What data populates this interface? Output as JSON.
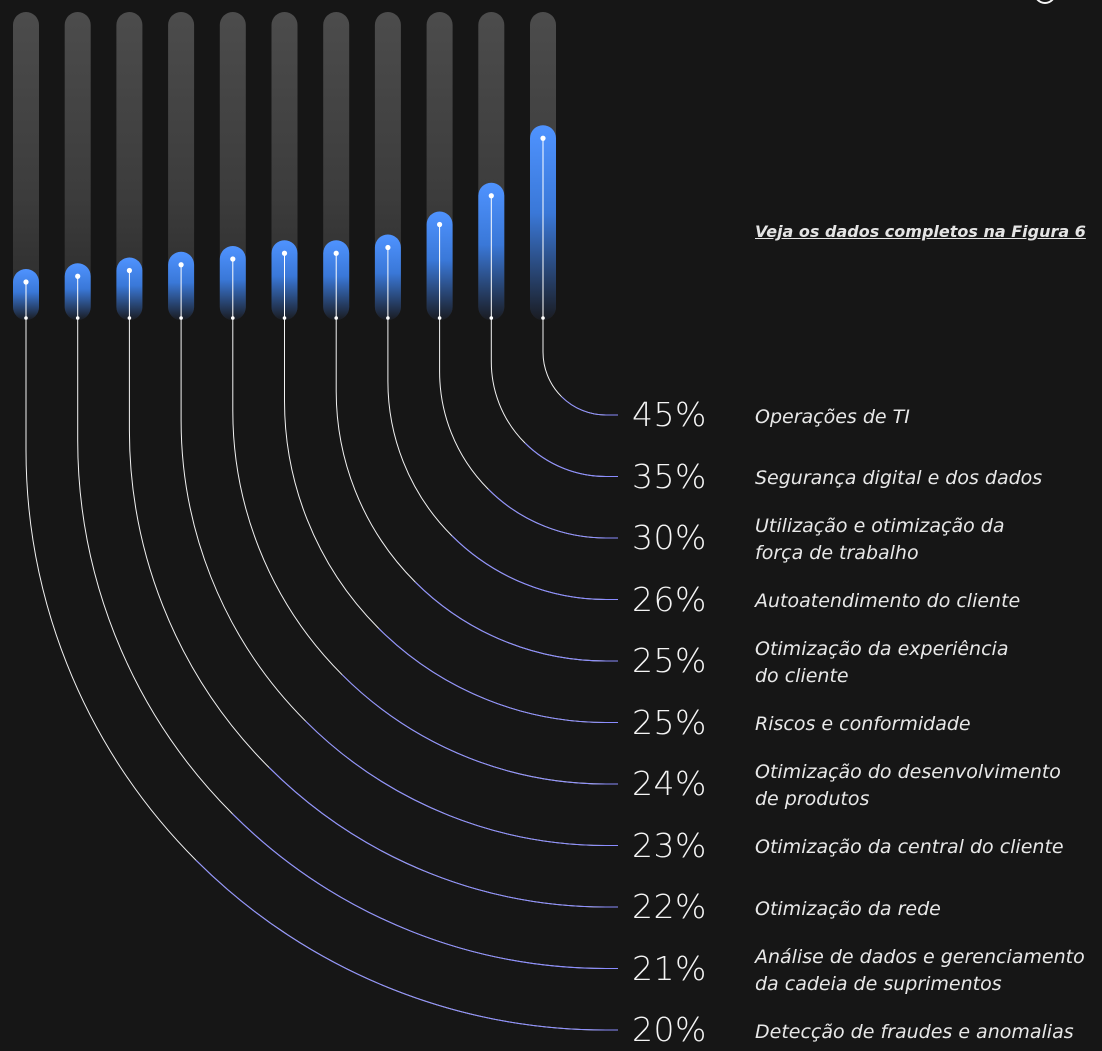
{
  "see_link": "Veja os dados completos na Figura 6",
  "chart_data": {
    "type": "bar",
    "title": "",
    "xlabel": "",
    "ylabel": "",
    "ylim": [
      0,
      100
    ],
    "grid": false,
    "legend": "none",
    "categories": [
      [
        "Detecção de fraudes e anomalias"
      ],
      [
        "Análise de dados e gerenciamento",
        "da cadeia de suprimentos"
      ],
      [
        "Otimização da rede"
      ],
      [
        "Otimização da central do cliente"
      ],
      [
        "Otimização do desenvolvimento",
        "de produtos"
      ],
      [
        "Riscos e conformidade"
      ],
      [
        "Otimização da experiência",
        "do cliente"
      ],
      [
        "Autoatendimento do cliente"
      ],
      [
        "Utilização e otimização da",
        "força de trabalho"
      ],
      [
        "Segurança digital e dos dados"
      ],
      [
        "Operações de TI"
      ]
    ],
    "values": [
      20,
      21,
      22,
      23,
      24,
      25,
      25,
      26,
      30,
      35,
      45
    ],
    "value_labels": [
      "20%",
      "21%",
      "22%",
      "23%",
      "24%",
      "25%",
      "25%",
      "26%",
      "30%",
      "35%",
      "45%"
    ],
    "colors": {
      "background": "#161616",
      "track": "#4a4a4a",
      "fill_top": "#4589ff",
      "fill_bottom": "#161616",
      "connector_bar": "#ffffff",
      "connector_label": "#8a8cff",
      "text": "#f4f4f4"
    }
  }
}
